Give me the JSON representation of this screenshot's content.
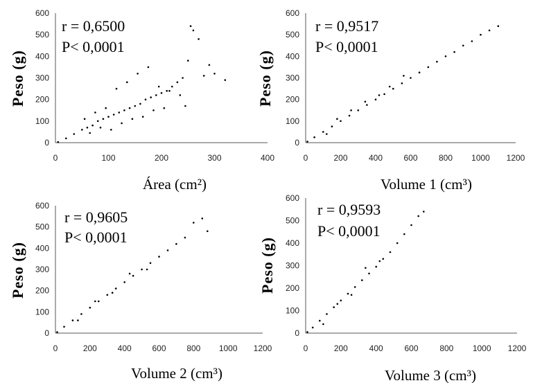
{
  "chart_data": [
    {
      "type": "scatter",
      "xlabel": "Área (cm²)",
      "ylabel": "Peso (g)",
      "xlim": [
        0,
        400
      ],
      "ylim": [
        0,
        600
      ],
      "xticks": [
        "0",
        "100",
        "200",
        "300",
        "400"
      ],
      "yticks": [
        "0",
        "100",
        "200",
        "300",
        "400",
        "500",
        "600"
      ],
      "annotations": [
        "r = 0,6500",
        "P< 0,0001"
      ],
      "grid": false,
      "x": [
        5,
        20,
        35,
        50,
        60,
        70,
        80,
        90,
        100,
        110,
        120,
        130,
        140,
        150,
        160,
        170,
        180,
        190,
        200,
        210,
        220,
        230,
        240,
        250,
        260,
        280,
        300,
        320,
        55,
        75,
        95,
        115,
        135,
        155,
        175,
        195,
        215,
        235,
        105,
        125,
        145,
        165,
        185,
        205,
        85,
        65,
        245,
        270,
        255,
        290
      ],
      "y": [
        3,
        20,
        40,
        60,
        70,
        80,
        100,
        110,
        120,
        130,
        140,
        150,
        160,
        170,
        180,
        200,
        210,
        220,
        230,
        240,
        260,
        280,
        300,
        380,
        520,
        310,
        320,
        290,
        110,
        140,
        160,
        250,
        280,
        320,
        350,
        260,
        240,
        220,
        60,
        90,
        110,
        120,
        150,
        160,
        70,
        45,
        170,
        480,
        540,
        360
      ]
    },
    {
      "type": "scatter",
      "xlabel": "Volume 1 (cm³)",
      "ylabel": "Peso (g)",
      "xlim": [
        0,
        1200
      ],
      "ylim": [
        0,
        600
      ],
      "xticks": [
        "0",
        "200",
        "400",
        "600",
        "800",
        "1000",
        "1200"
      ],
      "yticks": [
        "0",
        "100",
        "200",
        "300",
        "400",
        "500",
        "600"
      ],
      "annotations": [
        "r = 0,9517",
        "P< 0,0001"
      ],
      "grid": false,
      "x": [
        10,
        50,
        100,
        150,
        200,
        250,
        300,
        350,
        400,
        450,
        500,
        550,
        600,
        650,
        700,
        750,
        800,
        850,
        900,
        950,
        1000,
        1050,
        1100,
        120,
        180,
        260,
        340,
        420,
        480,
        560
      ],
      "y": [
        5,
        25,
        50,
        75,
        100,
        125,
        150,
        175,
        200,
        225,
        250,
        275,
        300,
        325,
        350,
        375,
        400,
        420,
        450,
        470,
        500,
        520,
        540,
        40,
        110,
        150,
        190,
        220,
        260,
        310
      ]
    },
    {
      "type": "scatter",
      "xlabel": "Volume 2 (cm³)",
      "ylabel": "Peso (g)",
      "xlim": [
        0,
        1200
      ],
      "ylim": [
        0,
        600
      ],
      "xticks": [
        "0",
        "200",
        "400",
        "600",
        "800",
        "1000",
        "1200"
      ],
      "yticks": [
        "0",
        "100",
        "200",
        "300",
        "400",
        "500",
        "600"
      ],
      "annotations": [
        "r = 0,9605",
        "P< 0,0001"
      ],
      "grid": false,
      "x": [
        10,
        50,
        100,
        150,
        200,
        250,
        300,
        350,
        400,
        450,
        500,
        550,
        600,
        650,
        700,
        750,
        800,
        850,
        880,
        130,
        230,
        330,
        430,
        530
      ],
      "y": [
        5,
        30,
        60,
        90,
        120,
        150,
        180,
        210,
        240,
        270,
        300,
        330,
        360,
        390,
        420,
        450,
        520,
        540,
        480,
        60,
        150,
        190,
        280,
        300
      ]
    },
    {
      "type": "scatter",
      "xlabel": "Volume 3 (cm³)",
      "ylabel": "Peso (g)",
      "xlim": [
        0,
        1200
      ],
      "ylim": [
        0,
        600
      ],
      "xticks": [
        "0",
        "200",
        "400",
        "600",
        "800",
        "1000",
        "1200"
      ],
      "yticks": [
        "0",
        "100",
        "200",
        "300",
        "400",
        "500",
        "600"
      ],
      "annotations": [
        "r = 0,9593",
        "P< 0,0001"
      ],
      "grid": false,
      "x": [
        10,
        40,
        80,
        120,
        160,
        200,
        240,
        280,
        320,
        360,
        400,
        440,
        480,
        520,
        560,
        600,
        640,
        670,
        100,
        180,
        260,
        340,
        420
      ],
      "y": [
        5,
        25,
        55,
        85,
        115,
        145,
        175,
        205,
        235,
        265,
        295,
        330,
        360,
        400,
        440,
        480,
        520,
        540,
        40,
        130,
        170,
        290,
        320
      ]
    }
  ]
}
